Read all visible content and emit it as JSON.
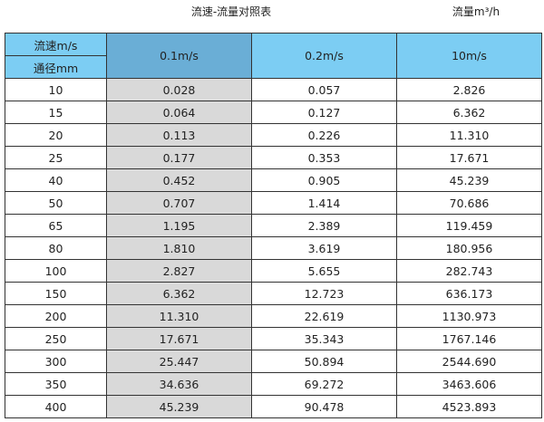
{
  "title": "流速-流量对照表",
  "unit_label": "流量m³/h",
  "header": {
    "velocity_label": "流速m/s",
    "diameter_label": "通径mm",
    "columns": [
      "0.1m/s",
      "0.2m/s",
      "10m/s"
    ]
  },
  "rows": [
    [
      "10",
      "0.028",
      "0.057",
      "2.826"
    ],
    [
      "15",
      "0.064",
      "0.127",
      "6.362"
    ],
    [
      "20",
      "0.113",
      "0.226",
      "11.310"
    ],
    [
      "25",
      "0.177",
      "0.353",
      "17.671"
    ],
    [
      "40",
      "0.452",
      "0.905",
      "45.239"
    ],
    [
      "50",
      "0.707",
      "1.414",
      "70.686"
    ],
    [
      "65",
      "1.195",
      "2.389",
      "119.459"
    ],
    [
      "80",
      "1.810",
      "3.619",
      "180.956"
    ],
    [
      "100",
      "2.827",
      "5.655",
      "282.743"
    ],
    [
      "150",
      "6.362",
      "12.723",
      "636.173"
    ],
    [
      "200",
      "11.310",
      "22.619",
      "1130.973"
    ],
    [
      "250",
      "17.671",
      "35.343",
      "1767.146"
    ],
    [
      "300",
      "25.447",
      "50.894",
      "2544.690"
    ],
    [
      "350",
      "34.636",
      "69.272",
      "3463.606"
    ],
    [
      "400",
      "45.239",
      "90.478",
      "4523.893"
    ]
  ],
  "colors": {
    "header": "#7ccdf3",
    "highlight_header": "#6aaed6",
    "highlight_column": "#d9d9d9"
  }
}
